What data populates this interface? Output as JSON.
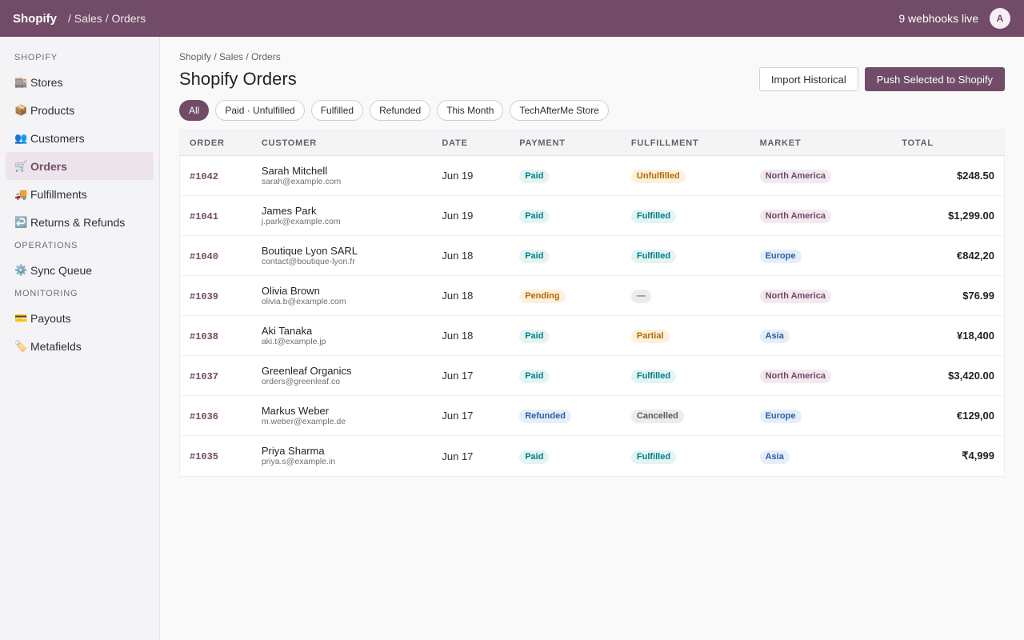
{
  "topbar": {
    "brand": "Shopify",
    "breadcrumb": "/ Sales / Orders",
    "webhooks": "9 webhooks live",
    "avatar": "A"
  },
  "sidebar": {
    "sections": [
      {
        "title": "SHOPIFY",
        "items": [
          {
            "icon": "🏬",
            "label": "Stores"
          },
          {
            "icon": "📦",
            "label": "Products"
          },
          {
            "icon": "👥",
            "label": "Customers"
          },
          {
            "icon": "🛒",
            "label": "Orders",
            "active": true
          },
          {
            "icon": "🚚",
            "label": "Fulfillments"
          },
          {
            "icon": "↩️",
            "label": "Returns & Refunds"
          }
        ]
      },
      {
        "title": "OPERATIONS",
        "items": [
          {
            "icon": "⚙️",
            "label": "Sync Queue"
          }
        ]
      },
      {
        "title": "MONITORING",
        "items": [
          {
            "icon": "💳",
            "label": "Payouts"
          },
          {
            "icon": "🏷️",
            "label": "Metafields"
          }
        ]
      }
    ]
  },
  "main": {
    "breadcrumb": "Shopify / Sales / Orders",
    "title": "Shopify Orders",
    "import_label": "Import Historical",
    "push_label": "Push Selected to Shopify",
    "filters": [
      {
        "label": "All",
        "active": true
      },
      {
        "label": "Paid · Unfulfilled"
      },
      {
        "label": "Fulfilled"
      },
      {
        "label": "Refunded"
      },
      {
        "label": "This Month"
      },
      {
        "label": "TechAfterMe Store"
      }
    ]
  },
  "table": {
    "columns": [
      "ORDER",
      "CUSTOMER",
      "DATE",
      "PAYMENT",
      "FULFILLMENT",
      "MARKET",
      "TOTAL"
    ],
    "rows": [
      {
        "order": "#1042",
        "name": "Sarah Mitchell",
        "email": "sarah@example.com",
        "date": "Jun 19",
        "payment": "Paid",
        "payment_kind": "paid",
        "fulfillment": "Unfulfilled",
        "fulfillment_kind": "unfulfilled",
        "market": "North America",
        "market_kind": "na",
        "total": "$248.50"
      },
      {
        "order": "#1041",
        "name": "James Park",
        "email": "j.park@example.com",
        "date": "Jun 19",
        "payment": "Paid",
        "payment_kind": "paid",
        "fulfillment": "Fulfilled",
        "fulfillment_kind": "fulfilled",
        "market": "North America",
        "market_kind": "na",
        "total": "$1,299.00"
      },
      {
        "order": "#1040",
        "name": "Boutique Lyon SARL",
        "email": "contact@boutique-lyon.fr",
        "date": "Jun 18",
        "payment": "Paid",
        "payment_kind": "paid",
        "fulfillment": "Fulfilled",
        "fulfillment_kind": "fulfilled",
        "market": "Europe",
        "market_kind": "eu",
        "total": "€842,20"
      },
      {
        "order": "#1039",
        "name": "Olivia Brown",
        "email": "olivia.b@example.com",
        "date": "Jun 18",
        "payment": "Pending",
        "payment_kind": "pending",
        "fulfillment": "—",
        "fulfillment_kind": "none",
        "market": "North America",
        "market_kind": "na",
        "total": "$76.99"
      },
      {
        "order": "#1038",
        "name": "Aki Tanaka",
        "email": "aki.t@example.jp",
        "date": "Jun 18",
        "payment": "Paid",
        "payment_kind": "paid",
        "fulfillment": "Partial",
        "fulfillment_kind": "partial",
        "market": "Asia",
        "market_kind": "asia",
        "total": "¥18,400"
      },
      {
        "order": "#1037",
        "name": "Greenleaf Organics",
        "email": "orders@greenleaf.co",
        "date": "Jun 17",
        "payment": "Paid",
        "payment_kind": "paid",
        "fulfillment": "Fulfilled",
        "fulfillment_kind": "fulfilled",
        "market": "North America",
        "market_kind": "na",
        "total": "$3,420.00"
      },
      {
        "order": "#1036",
        "name": "Markus Weber",
        "email": "m.weber@example.de",
        "date": "Jun 17",
        "payment": "Refunded",
        "payment_kind": "refunded",
        "fulfillment": "Cancelled",
        "fulfillment_kind": "cancelled",
        "market": "Europe",
        "market_kind": "eu",
        "total": "€129,00"
      },
      {
        "order": "#1035",
        "name": "Priya Sharma",
        "email": "priya.s@example.in",
        "date": "Jun 17",
        "payment": "Paid",
        "payment_kind": "paid",
        "fulfillment": "Fulfilled",
        "fulfillment_kind": "fulfilled",
        "market": "Asia",
        "market_kind": "asia",
        "total": "₹4,999"
      }
    ]
  }
}
